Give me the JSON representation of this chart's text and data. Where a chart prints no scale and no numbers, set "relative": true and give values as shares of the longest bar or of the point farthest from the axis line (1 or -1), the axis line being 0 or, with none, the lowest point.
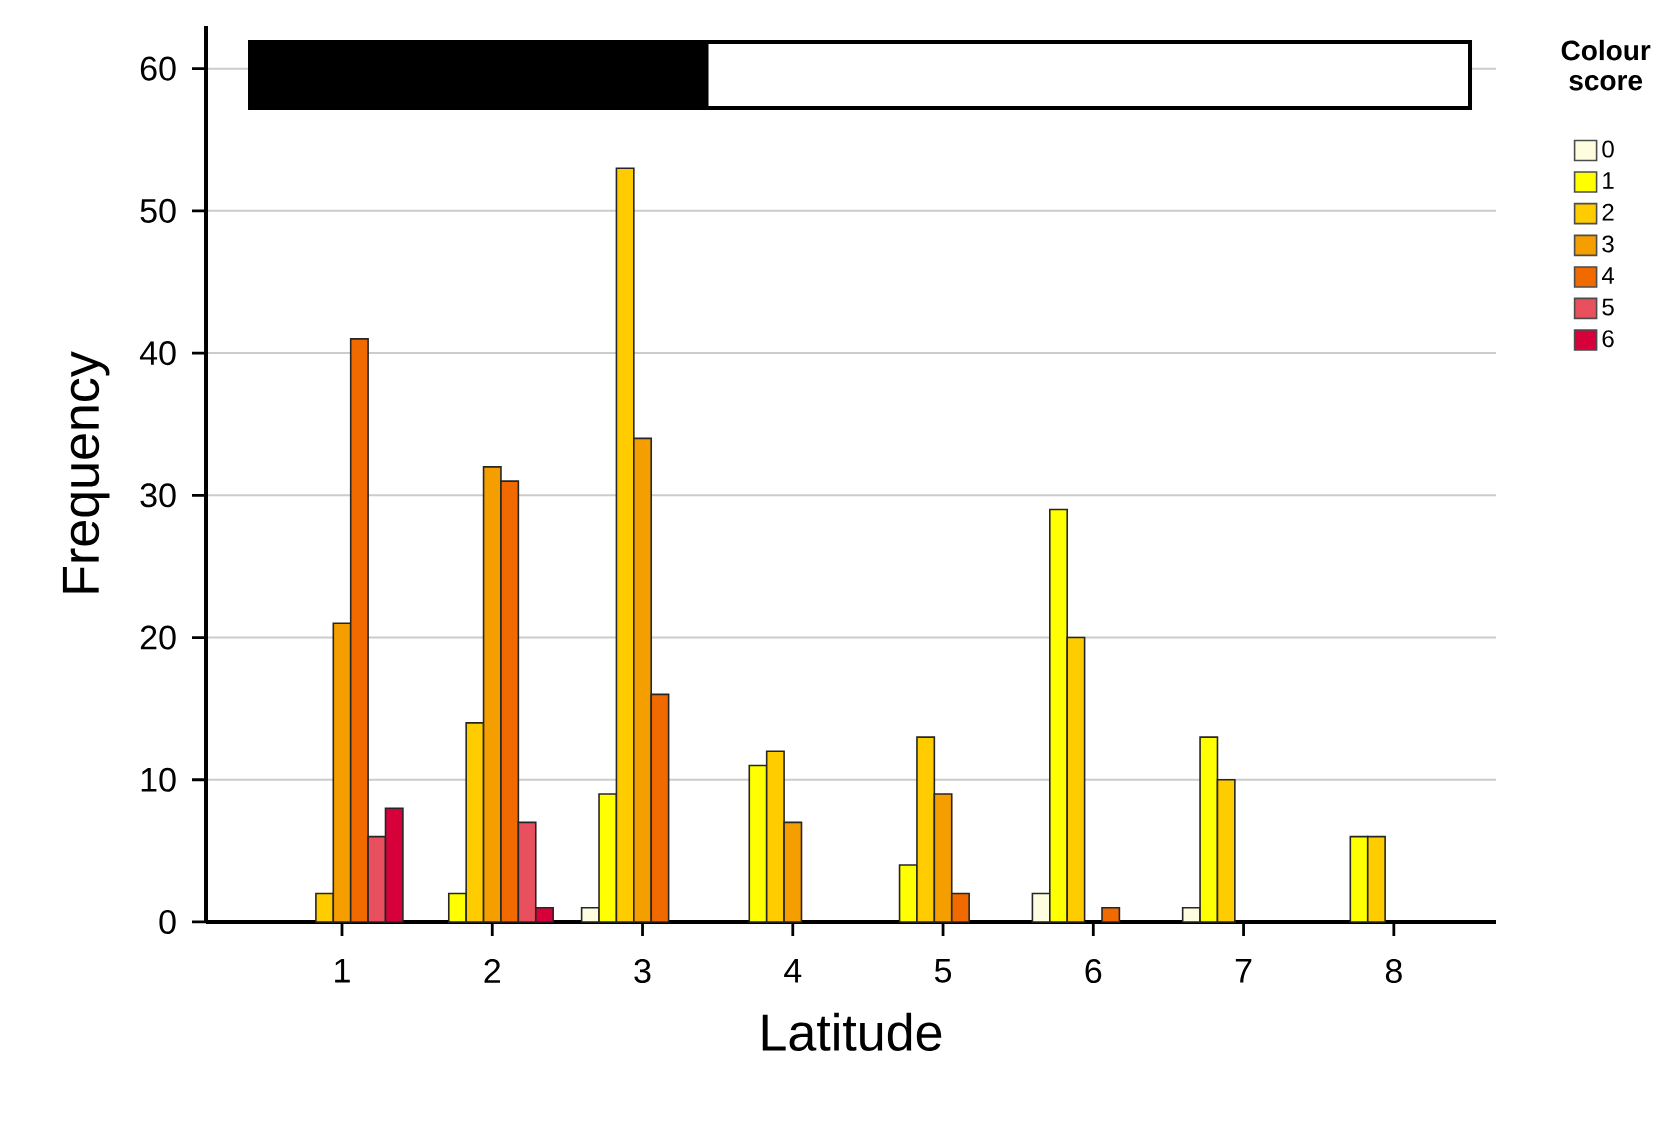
{
  "chart_data": [
    {
      "type": "bar",
      "xlabel": "Latitude",
      "ylabel": "Frequency",
      "legend_title": "Colour score",
      "categories": [
        "1",
        "2",
        "3",
        "4",
        "5",
        "6",
        "7",
        "8"
      ],
      "series": [
        {
          "name": "0",
          "color": "#fffde0",
          "values": [
            null,
            null,
            1,
            null,
            null,
            2,
            1,
            null
          ]
        },
        {
          "name": "1",
          "color": "#ffff00",
          "values": [
            null,
            2,
            9,
            11,
            4,
            29,
            13,
            6
          ]
        },
        {
          "name": "2",
          "color": "#ffcc00",
          "values": [
            2,
            14,
            53,
            12,
            13,
            20,
            10,
            6
          ]
        },
        {
          "name": "3",
          "color": "#f59e00",
          "values": [
            21,
            32,
            34,
            7,
            9,
            null,
            null,
            null
          ]
        },
        {
          "name": "4",
          "color": "#f06a00",
          "values": [
            41,
            31,
            16,
            null,
            2,
            1,
            null,
            null
          ]
        },
        {
          "name": "5",
          "color": "#e8505e",
          "values": [
            6,
            7,
            null,
            null,
            null,
            null,
            null,
            null
          ]
        },
        {
          "name": "6",
          "color": "#d6003a",
          "values": [
            8,
            1,
            null,
            null,
            null,
            null,
            null,
            null
          ]
        }
      ],
      "ylim": [
        0,
        63
      ],
      "yticks": [
        0,
        10,
        20,
        30,
        40,
        50,
        60
      ],
      "grid": "y",
      "legend": "top right"
    },
    {
      "type": "bar",
      "orientation": "horizontal",
      "stacked": true,
      "relative": true,
      "categories": [
        null
      ],
      "series": [
        {
          "color": "#000000",
          "values": [
            0.374
          ]
        },
        {
          "color": "#ffffff",
          "values": [
            0.626
          ]
        }
      ]
    }
  ]
}
